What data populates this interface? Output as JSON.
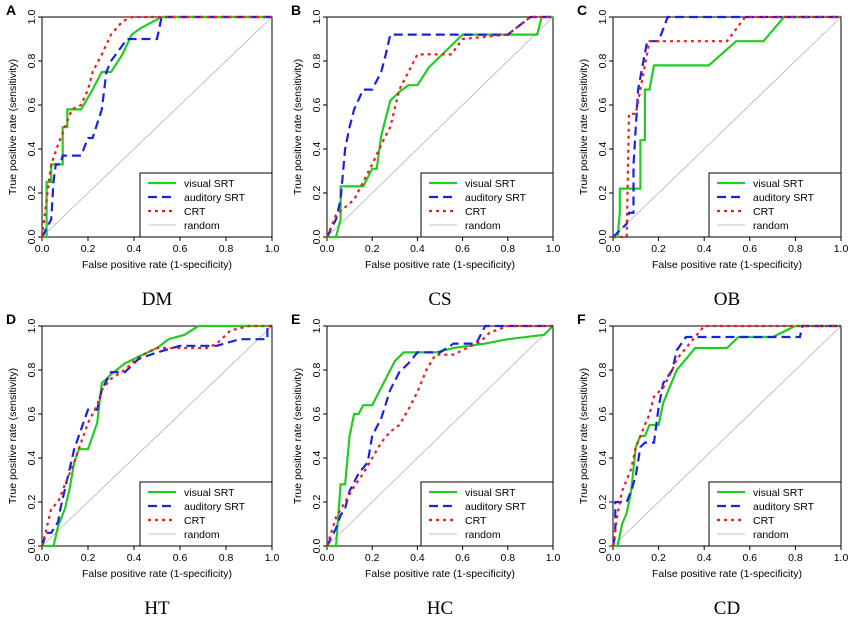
{
  "style": {
    "series_colors": {
      "visual SRT": "#22cc22",
      "auditory SRT": "#1a22dd",
      "CRT": "#ee1c1c",
      "random": "#b3b3b3"
    }
  },
  "chart_data": [
    {
      "panel": "A",
      "caption": "DM",
      "type": "line",
      "xlabel": "False positive rate (1-specificity)",
      "ylabel": "True positive rate (sensitivity)",
      "xlim": [
        0,
        1
      ],
      "ylim": [
        0,
        1
      ],
      "xticks": [
        "0.0",
        "0.2",
        "0.4",
        "0.6",
        "0.8",
        "1.0"
      ],
      "yticks": [
        "0.0",
        "0.2",
        "0.4",
        "0.6",
        "0.8",
        "1.0"
      ],
      "legend": [
        "visual SRT",
        "auditory SRT",
        "CRT",
        "random"
      ],
      "legend_position": "bottom-right",
      "series": [
        {
          "name": "visual SRT",
          "x": [
            0,
            0.02,
            0.02,
            0.04,
            0.04,
            0.09,
            0.09,
            0.11,
            0.11,
            0.17,
            0.17,
            0.22,
            0.26,
            0.3,
            0.35,
            0.39,
            0.43,
            0.52,
            1
          ],
          "y": [
            0,
            0,
            0.25,
            0.25,
            0.33,
            0.33,
            0.5,
            0.5,
            0.58,
            0.58,
            0.58,
            0.67,
            0.75,
            0.75,
            0.83,
            0.92,
            0.95,
            1,
            1
          ]
        },
        {
          "name": "auditory SRT",
          "x": [
            0,
            0.04,
            0.05,
            0.06,
            0.08,
            0.09,
            0.13,
            0.17,
            0.2,
            0.22,
            0.26,
            0.28,
            0.3,
            0.37,
            0.43,
            0.5,
            0.52,
            0.54,
            1
          ],
          "y": [
            0,
            0.08,
            0.25,
            0.33,
            0.33,
            0.37,
            0.37,
            0.37,
            0.45,
            0.45,
            0.58,
            0.75,
            0.8,
            0.9,
            0.9,
            0.9,
            1,
            1,
            1
          ]
        },
        {
          "name": "CRT",
          "x": [
            0,
            0.02,
            0.04,
            0.07,
            0.1,
            0.13,
            0.17,
            0.2,
            0.22,
            0.26,
            0.3,
            0.35,
            0.39,
            1
          ],
          "y": [
            0,
            0.17,
            0.33,
            0.42,
            0.5,
            0.58,
            0.6,
            0.67,
            0.75,
            0.83,
            0.92,
            0.98,
            1,
            1
          ]
        },
        {
          "name": "random",
          "x": [
            0,
            1
          ],
          "y": [
            0,
            1
          ]
        }
      ]
    },
    {
      "panel": "B",
      "caption": "CS",
      "type": "line",
      "xlabel": "False positive rate (1-specificity)",
      "ylabel": "True positive rate (sensitivity)",
      "xlim": [
        0,
        1
      ],
      "ylim": [
        0,
        1
      ],
      "xticks": [
        "0.0",
        "0.2",
        "0.4",
        "0.6",
        "0.8",
        "1.0"
      ],
      "yticks": [
        "0.0",
        "0.2",
        "0.4",
        "0.6",
        "0.8",
        "1.0"
      ],
      "legend": [
        "visual SRT",
        "auditory SRT",
        "CRT",
        "random"
      ],
      "legend_position": "bottom-right",
      "series": [
        {
          "name": "visual SRT",
          "x": [
            0,
            0.04,
            0.06,
            0.06,
            0.16,
            0.16,
            0.2,
            0.22,
            0.24,
            0.28,
            0.32,
            0.36,
            0.4,
            0.45,
            0.6,
            0.7,
            0.93,
            0.95,
            1
          ],
          "y": [
            0,
            0,
            0.08,
            0.23,
            0.23,
            0.23,
            0.31,
            0.31,
            0.46,
            0.62,
            0.66,
            0.69,
            0.69,
            0.77,
            0.92,
            0.92,
            0.92,
            1,
            1
          ]
        },
        {
          "name": "auditory SRT",
          "x": [
            0,
            0.04,
            0.06,
            0.08,
            0.1,
            0.12,
            0.16,
            0.2,
            0.24,
            0.26,
            0.28,
            0.3,
            0.6,
            0.8,
            0.9,
            1
          ],
          "y": [
            0,
            0.08,
            0.17,
            0.4,
            0.5,
            0.58,
            0.67,
            0.67,
            0.75,
            0.83,
            0.92,
            0.92,
            0.92,
            0.92,
            1,
            1
          ]
        },
        {
          "name": "CRT",
          "x": [
            0,
            0.04,
            0.12,
            0.16,
            0.2,
            0.24,
            0.28,
            0.32,
            0.36,
            0.4,
            0.5,
            0.55,
            0.6,
            0.8,
            0.9,
            1
          ],
          "y": [
            0,
            0.1,
            0.17,
            0.25,
            0.33,
            0.42,
            0.5,
            0.67,
            0.75,
            0.83,
            0.83,
            0.83,
            0.9,
            0.92,
            1,
            1
          ]
        },
        {
          "name": "random",
          "x": [
            0,
            1
          ],
          "y": [
            0,
            1
          ]
        }
      ]
    },
    {
      "panel": "C",
      "caption": "OB",
      "type": "line",
      "xlabel": "False positive rate (1-specificity)",
      "ylabel": "True positive rate (sensitivity)",
      "xlim": [
        0,
        1
      ],
      "ylim": [
        0,
        1
      ],
      "xticks": [
        "0.0",
        "0.2",
        "0.4",
        "0.6",
        "0.8",
        "1.0"
      ],
      "yticks": [
        "0.0",
        "0.2",
        "0.4",
        "0.6",
        "0.8",
        "1.0"
      ],
      "legend": [
        "visual SRT",
        "auditory SRT",
        "CRT",
        "random"
      ],
      "legend_position": "bottom-right",
      "series": [
        {
          "name": "visual SRT",
          "x": [
            0,
            0.02,
            0.03,
            0.03,
            0.12,
            0.12,
            0.14,
            0.14,
            0.16,
            0.18,
            0.28,
            0.42,
            0.54,
            0.66,
            0.75,
            1
          ],
          "y": [
            0,
            0,
            0.11,
            0.22,
            0.22,
            0.44,
            0.44,
            0.67,
            0.67,
            0.78,
            0.78,
            0.78,
            0.89,
            0.89,
            1,
            1
          ]
        },
        {
          "name": "auditory SRT",
          "x": [
            0,
            0.06,
            0.07,
            0.09,
            0.09,
            0.11,
            0.13,
            0.15,
            0.17,
            0.2,
            0.24,
            1
          ],
          "y": [
            0,
            0.06,
            0.11,
            0.11,
            0.33,
            0.67,
            0.78,
            0.89,
            0.89,
            0.89,
            1,
            1
          ]
        },
        {
          "name": "CRT",
          "x": [
            0,
            0.06,
            0.07,
            0.07,
            0.1,
            0.12,
            0.14,
            0.16,
            0.18,
            0.2,
            0.3,
            0.42,
            0.5,
            0.58,
            0.64,
            0.66,
            0.75,
            1
          ],
          "y": [
            0,
            0,
            0.56,
            0.56,
            0.56,
            0.67,
            0.78,
            0.89,
            0.89,
            0.89,
            0.89,
            0.89,
            0.89,
            1,
            1,
            1,
            1,
            1
          ]
        },
        {
          "name": "random",
          "x": [
            0,
            1
          ],
          "y": [
            0,
            1
          ]
        }
      ]
    },
    {
      "panel": "D",
      "caption": "HT",
      "type": "line",
      "xlabel": "False positive rate (1-specificity)",
      "ylabel": "True positive rate (sensitivity)",
      "xlim": [
        0,
        1
      ],
      "ylim": [
        0,
        1
      ],
      "xticks": [
        "0.0",
        "0.2",
        "0.4",
        "0.6",
        "0.8",
        "1.0"
      ],
      "yticks": [
        "0.0",
        "0.2",
        "0.4",
        "0.6",
        "0.8",
        "1.0"
      ],
      "legend": [
        "visual SRT",
        "auditory SRT",
        "CRT",
        "random"
      ],
      "legend_position": "bottom-right",
      "series": [
        {
          "name": "visual SRT",
          "x": [
            0,
            0.05,
            0.07,
            0.1,
            0.12,
            0.14,
            0.16,
            0.2,
            0.24,
            0.26,
            0.3,
            0.36,
            0.42,
            0.5,
            0.55,
            0.62,
            0.68,
            0.72,
            1
          ],
          "y": [
            0,
            0,
            0.09,
            0.17,
            0.26,
            0.38,
            0.44,
            0.44,
            0.56,
            0.74,
            0.78,
            0.83,
            0.86,
            0.9,
            0.94,
            0.96,
            1,
            1,
            1
          ]
        },
        {
          "name": "auditory SRT",
          "x": [
            0,
            0.02,
            0.04,
            0.07,
            0.08,
            0.1,
            0.12,
            0.14,
            0.17,
            0.2,
            0.24,
            0.26,
            0.3,
            0.36,
            0.42,
            0.5,
            0.6,
            0.7,
            0.76,
            0.86,
            0.98,
            0.98,
            1
          ],
          "y": [
            0,
            0.06,
            0.06,
            0.11,
            0.17,
            0.26,
            0.35,
            0.44,
            0.53,
            0.62,
            0.62,
            0.71,
            0.79,
            0.79,
            0.85,
            0.88,
            0.91,
            0.91,
            0.91,
            0.94,
            0.94,
            1,
            1
          ]
        },
        {
          "name": "CRT",
          "x": [
            0,
            0.02,
            0.04,
            0.07,
            0.1,
            0.14,
            0.2,
            0.24,
            0.26,
            0.3,
            0.36,
            0.42,
            0.5,
            0.6,
            0.72,
            0.76,
            0.82,
            0.9,
            1
          ],
          "y": [
            0,
            0.08,
            0.17,
            0.2,
            0.28,
            0.38,
            0.56,
            0.64,
            0.71,
            0.76,
            0.8,
            0.86,
            0.9,
            0.9,
            0.9,
            0.92,
            0.98,
            1,
            1
          ]
        },
        {
          "name": "random",
          "x": [
            0,
            1
          ],
          "y": [
            0,
            1
          ]
        }
      ]
    },
    {
      "panel": "E",
      "caption": "HC",
      "type": "line",
      "xlabel": "False positive rate (1-specificity)",
      "ylabel": "True positive rate (sensitivity)",
      "xlim": [
        0,
        1
      ],
      "ylim": [
        0,
        1
      ],
      "xticks": [
        "0.0",
        "0.2",
        "0.4",
        "0.6",
        "0.8",
        "1.0"
      ],
      "yticks": [
        "0.0",
        "0.2",
        "0.4",
        "0.6",
        "0.8",
        "1.0"
      ],
      "legend": [
        "visual SRT",
        "auditory SRT",
        "CRT",
        "random"
      ],
      "legend_position": "bottom-right",
      "series": [
        {
          "name": "visual SRT",
          "x": [
            0,
            0.04,
            0.05,
            0.06,
            0.08,
            0.1,
            0.12,
            0.14,
            0.16,
            0.2,
            0.24,
            0.28,
            0.3,
            0.34,
            0.44,
            0.48,
            0.56,
            0.7,
            0.8,
            0.96,
            0.98,
            1
          ],
          "y": [
            0,
            0,
            0.14,
            0.28,
            0.28,
            0.5,
            0.6,
            0.6,
            0.64,
            0.64,
            0.72,
            0.8,
            0.84,
            0.88,
            0.88,
            0.88,
            0.9,
            0.92,
            0.94,
            0.96,
            0.98,
            1
          ]
        },
        {
          "name": "auditory SRT",
          "x": [
            0,
            0.04,
            0.06,
            0.08,
            0.1,
            0.14,
            0.18,
            0.2,
            0.24,
            0.28,
            0.32,
            0.36,
            0.4,
            0.5,
            0.56,
            0.66,
            0.7,
            1
          ],
          "y": [
            0,
            0.08,
            0.14,
            0.17,
            0.25,
            0.33,
            0.38,
            0.5,
            0.58,
            0.71,
            0.79,
            0.83,
            0.88,
            0.88,
            0.92,
            0.92,
            1,
            1
          ]
        },
        {
          "name": "CRT",
          "x": [
            0,
            0.04,
            0.08,
            0.12,
            0.16,
            0.2,
            0.24,
            0.28,
            0.32,
            0.36,
            0.4,
            0.44,
            0.48,
            0.52,
            0.56,
            0.62,
            0.68,
            0.72,
            0.8,
            0.9,
            1
          ],
          "y": [
            0,
            0.13,
            0.2,
            0.27,
            0.33,
            0.4,
            0.47,
            0.52,
            0.55,
            0.62,
            0.7,
            0.8,
            0.87,
            0.87,
            0.87,
            0.9,
            0.93,
            0.97,
            1,
            1,
            1
          ]
        },
        {
          "name": "random",
          "x": [
            0,
            1
          ],
          "y": [
            0,
            1
          ]
        }
      ]
    },
    {
      "panel": "F",
      "caption": "CD",
      "type": "line",
      "xlabel": "False positive rate (1-specificity)",
      "ylabel": "True positive rate (sensitivity)",
      "xlim": [
        0,
        1
      ],
      "ylim": [
        0,
        1
      ],
      "xticks": [
        "0.0",
        "0.2",
        "0.4",
        "0.6",
        "0.8",
        "1.0"
      ],
      "yticks": [
        "0.0",
        "0.2",
        "0.4",
        "0.6",
        "0.8",
        "1.0"
      ],
      "legend": [
        "visual SRT",
        "auditory SRT",
        "CRT",
        "random"
      ],
      "legend_position": "bottom-right",
      "series": [
        {
          "name": "visual SRT",
          "x": [
            0,
            0.02,
            0.04,
            0.06,
            0.08,
            0.1,
            0.12,
            0.14,
            0.16,
            0.2,
            0.22,
            0.24,
            0.28,
            0.32,
            0.36,
            0.4,
            0.5,
            0.55,
            0.7,
            0.8,
            1
          ],
          "y": [
            0,
            0,
            0.1,
            0.15,
            0.25,
            0.45,
            0.5,
            0.5,
            0.55,
            0.55,
            0.65,
            0.7,
            0.8,
            0.85,
            0.9,
            0.9,
            0.9,
            0.95,
            0.95,
            1,
            1
          ]
        },
        {
          "name": "auditory SRT",
          "x": [
            0,
            0.01,
            0.01,
            0.06,
            0.08,
            0.1,
            0.12,
            0.14,
            0.18,
            0.2,
            0.22,
            0.26,
            0.28,
            0.32,
            0.5,
            0.82,
            0.83,
            1
          ],
          "y": [
            0,
            0.05,
            0.2,
            0.2,
            0.25,
            0.32,
            0.45,
            0.47,
            0.47,
            0.63,
            0.74,
            0.8,
            0.89,
            0.95,
            0.95,
            0.95,
            1,
            1
          ]
        },
        {
          "name": "CRT",
          "x": [
            0,
            0.02,
            0.04,
            0.06,
            0.08,
            0.1,
            0.12,
            0.14,
            0.16,
            0.18,
            0.22,
            0.26,
            0.28,
            0.32,
            0.36,
            0.4,
            0.5,
            0.56,
            0.62,
            1
          ],
          "y": [
            0,
            0.15,
            0.25,
            0.3,
            0.35,
            0.45,
            0.5,
            0.55,
            0.6,
            0.68,
            0.72,
            0.8,
            0.85,
            0.9,
            0.95,
            1,
            1,
            1,
            1,
            1
          ]
        },
        {
          "name": "random",
          "x": [
            0,
            1
          ],
          "y": [
            0,
            1
          ]
        }
      ]
    }
  ]
}
